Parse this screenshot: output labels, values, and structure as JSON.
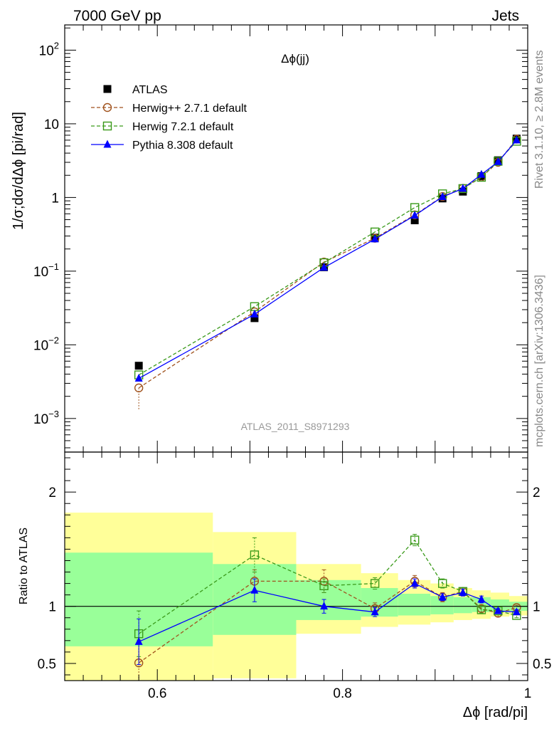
{
  "header": {
    "left": "7000 GeV pp",
    "right": "Jets"
  },
  "side_labels": {
    "rivet": "Rivet 3.1.10, ≥ 2.8M events",
    "mcplots": "mcplots.cern.ch [arXiv:1306.3436]"
  },
  "chart_data": [
    {
      "type": "scatter",
      "title": "Δϕ(jj)",
      "watermark": "ATLAS_2011_S8971293",
      "ylabel": "1/σ;dσ/dΔϕ [pi/rad]",
      "xlabel": "Δϕ [rad/pi]",
      "xlim": [
        0.5,
        1.0
      ],
      "ylim": [
        0.00035,
        220
      ],
      "yscale": "log",
      "ytick_labels": [
        "10^-3",
        "10^-2",
        "10^-1",
        "1",
        "10",
        "10^2"
      ],
      "legend_position": "top-left",
      "x": [
        0.58,
        0.705,
        0.78,
        0.835,
        0.878,
        0.908,
        0.93,
        0.95,
        0.968,
        0.988
      ],
      "series": [
        {
          "name": "ATLAS",
          "color": "#000000",
          "marker": "filled-square",
          "line": "none",
          "values": [
            0.0052,
            0.023,
            0.113,
            0.285,
            0.49,
            0.97,
            1.2,
            1.95,
            3.2,
            6.3
          ]
        },
        {
          "name": "Herwig++ 2.7.1 default",
          "color": "#a0521d",
          "marker": "open-circle",
          "line": "dashed",
          "values": [
            0.0026,
            0.028,
            0.133,
            0.28,
            0.58,
            1.03,
            1.33,
            1.9,
            3.0,
            6.2
          ]
        },
        {
          "name": "Herwig 7.2.1 default",
          "color": "#3a9a1a",
          "marker": "open-square",
          "line": "dashed",
          "values": [
            0.0039,
            0.033,
            0.13,
            0.34,
            0.73,
            1.12,
            1.32,
            1.88,
            3.1,
            5.8
          ]
        },
        {
          "name": "Pythia 8.308 default",
          "color": "#0000ff",
          "marker": "filled-triangle",
          "line": "solid",
          "values": [
            0.0035,
            0.026,
            0.112,
            0.272,
            0.57,
            1.02,
            1.32,
            2.05,
            3.05,
            6.0
          ]
        }
      ]
    },
    {
      "type": "scatter",
      "ylabel": "Ratio to ATLAS",
      "xlabel": "Δϕ [rad/pi]",
      "xlim": [
        0.5,
        1.0
      ],
      "ylim": [
        0.35,
        2.35
      ],
      "ytick_labels": [
        "0.5",
        "1",
        "2"
      ],
      "xtick_labels": [
        "0.6",
        "0.8",
        "1"
      ],
      "reference_line": 1,
      "uncertainty_bands": {
        "bins": [
          [
            0.5,
            0.66
          ],
          [
            0.66,
            0.75
          ],
          [
            0.75,
            0.82
          ],
          [
            0.82,
            0.86
          ],
          [
            0.86,
            0.895
          ],
          [
            0.895,
            0.92
          ],
          [
            0.92,
            0.94
          ],
          [
            0.94,
            0.96
          ],
          [
            0.96,
            0.98
          ],
          [
            0.98,
            1.0
          ]
        ],
        "inner": [
          [
            0.65,
            1.47
          ],
          [
            0.75,
            1.37
          ],
          [
            0.88,
            1.23
          ],
          [
            0.91,
            1.16
          ],
          [
            0.92,
            1.11
          ],
          [
            0.93,
            1.09
          ],
          [
            0.94,
            1.08
          ],
          [
            0.95,
            1.08
          ],
          [
            0.95,
            1.06
          ],
          [
            0.96,
            1.04
          ]
        ],
        "outer": [
          [
            0.33,
            1.82
          ],
          [
            0.37,
            1.65
          ],
          [
            0.76,
            1.37
          ],
          [
            0.82,
            1.29
          ],
          [
            0.84,
            1.23
          ],
          [
            0.86,
            1.2
          ],
          [
            0.88,
            1.16
          ],
          [
            0.89,
            1.14
          ],
          [
            0.91,
            1.12
          ],
          [
            0.92,
            1.09
          ]
        ]
      },
      "x": [
        0.58,
        0.705,
        0.78,
        0.835,
        0.878,
        0.908,
        0.93,
        0.95,
        0.968,
        0.988
      ],
      "series": [
        {
          "name": "Herwig++ 2.7.1 default",
          "color": "#a0521d",
          "marker": "open-circle",
          "line": "dashed",
          "values": [
            0.505,
            1.22,
            1.22,
            0.98,
            1.22,
            1.08,
            1.13,
            0.98,
            0.94,
            0.99
          ],
          "errors": [
            0.2,
            0.1,
            0.1,
            0.05,
            0.05,
            0.04,
            0.03,
            0.03,
            0.03,
            0.02
          ]
        },
        {
          "name": "Herwig 7.2.1 default",
          "color": "#3a9a1a",
          "marker": "open-square",
          "line": "dashed",
          "values": [
            0.76,
            1.45,
            1.18,
            1.2,
            1.58,
            1.2,
            1.13,
            0.97,
            0.96,
            0.92
          ],
          "errors": [
            0.2,
            0.15,
            0.06,
            0.05,
            0.05,
            0.04,
            0.03,
            0.03,
            0.02,
            0.02
          ]
        },
        {
          "name": "Pythia 8.308 default",
          "color": "#0000ff",
          "marker": "filled-triangle",
          "line": "solid",
          "values": [
            0.69,
            1.14,
            1.0,
            0.95,
            1.2,
            1.08,
            1.12,
            1.06,
            0.96,
            0.95
          ],
          "errors": [
            0.2,
            0.1,
            0.06,
            0.04,
            0.04,
            0.03,
            0.03,
            0.03,
            0.02,
            0.02
          ]
        }
      ]
    }
  ]
}
